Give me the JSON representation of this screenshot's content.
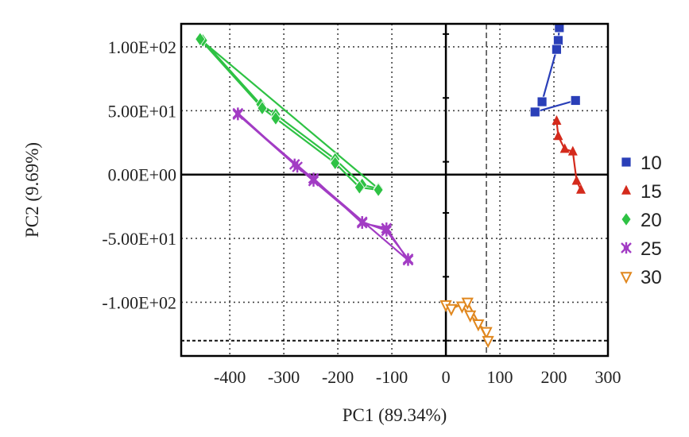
{
  "chart_data": {
    "type": "scatter",
    "title": "",
    "xlabel": "PC1 (89.34%)",
    "ylabel": "PC2 (9.69%)",
    "xlim": [
      -490,
      300
    ],
    "ylim": [
      -142,
      118
    ],
    "x_ticks": [
      -400,
      -300,
      -200,
      -100,
      0,
      100,
      200,
      300
    ],
    "x_tick_labels": [
      "-400",
      "-300",
      "-200",
      "-100",
      "0",
      "100",
      "200",
      "300"
    ],
    "y_ticks": [
      100,
      50,
      0,
      -50,
      -100
    ],
    "y_tick_labels": [
      "1.00E+02",
      "5.00E+01",
      "0.00E+00",
      "-5.00E+01",
      "-1.00E+02"
    ],
    "reference_lines": {
      "vertical_x": 75,
      "horizontal_y": -130
    },
    "legend_position": "right",
    "series": [
      {
        "name": "10",
        "color": "#2a3fb8",
        "marker": "square",
        "x": [
          210,
          208,
          205,
          178,
          165,
          240
        ],
        "y": [
          115,
          105,
          98,
          57,
          49,
          58
        ]
      },
      {
        "name": "15",
        "color": "#d42a1c",
        "marker": "triangle",
        "x": [
          205,
          208,
          220,
          235,
          242,
          250
        ],
        "y": [
          42,
          30,
          20,
          18,
          -5,
          -12
        ]
      },
      {
        "name": "20",
        "color": "#2ec244",
        "marker": "diamond",
        "x": [
          -450,
          -343,
          -315,
          -205,
          -155,
          -125,
          -455,
          -340,
          -315,
          -205,
          -160,
          -125
        ],
        "y": [
          105,
          55,
          47,
          12,
          -8,
          -11,
          106,
          52,
          44,
          9,
          -10,
          -12
        ]
      },
      {
        "name": "25",
        "color": "#a23cc4",
        "marker": "star",
        "x": [
          -385,
          -280,
          -245,
          -155,
          -110,
          -70,
          -385,
          -275,
          -245,
          -155,
          -110,
          -70
        ],
        "y": [
          48,
          8,
          -3,
          -38,
          -42,
          -67,
          47,
          6,
          -5,
          -37,
          -44,
          -66
        ]
      },
      {
        "name": "30",
        "color": "#e0871e",
        "marker": "triangle-down",
        "x": [
          0,
          30,
          45,
          60,
          75,
          78,
          40,
          10
        ],
        "y": [
          -102,
          -103,
          -110,
          -117,
          -123,
          -130,
          -100,
          -105
        ]
      }
    ]
  }
}
